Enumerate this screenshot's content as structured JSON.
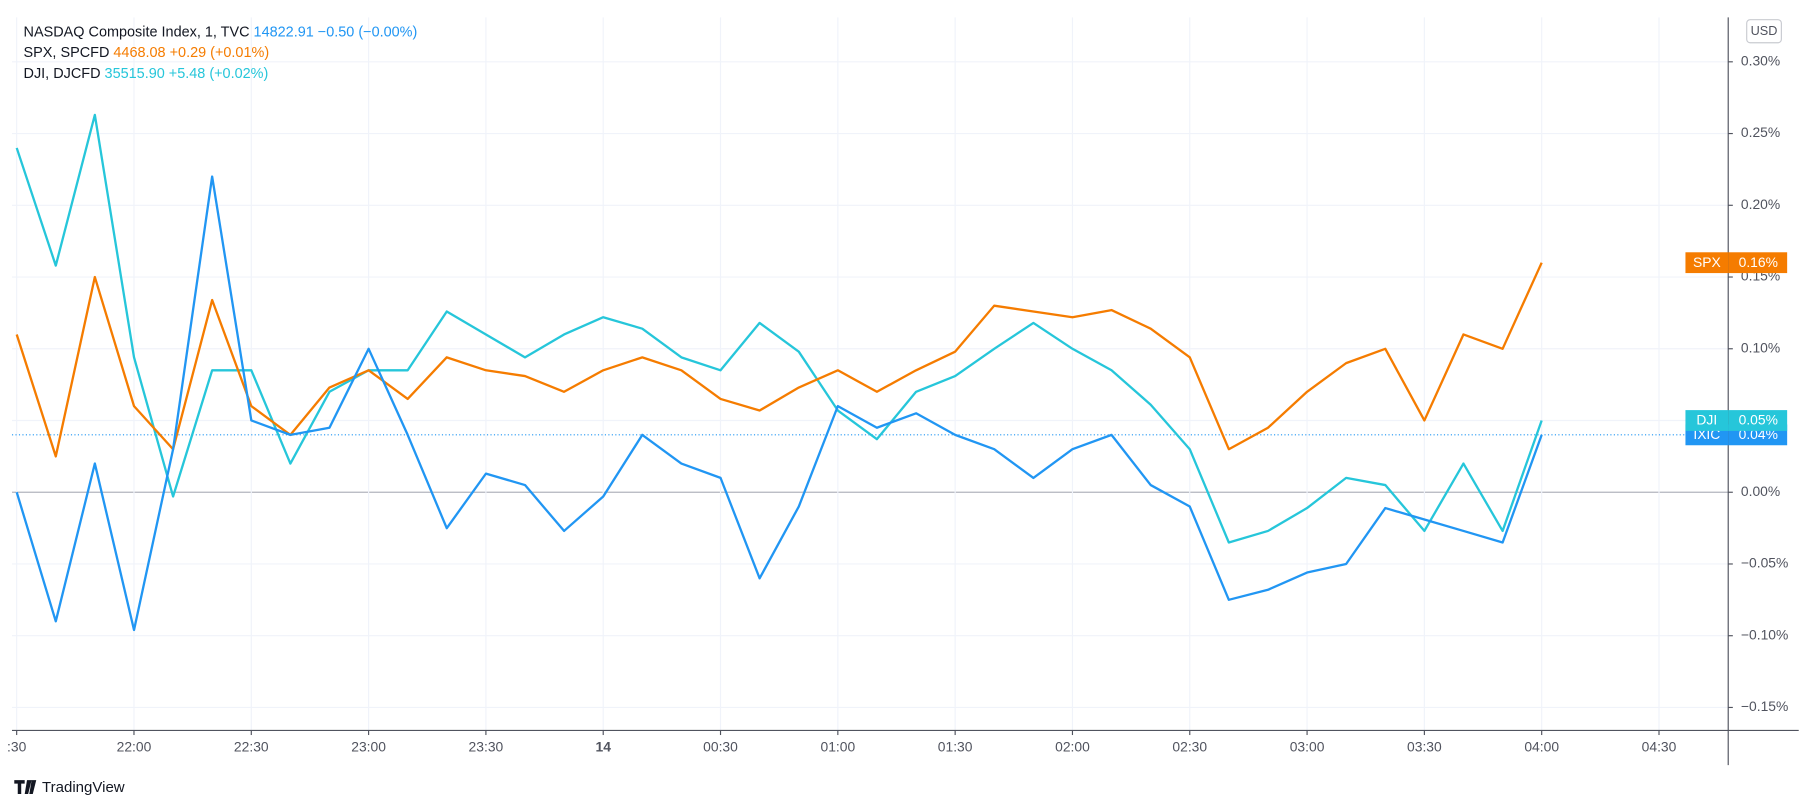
{
  "chart_data": {
    "type": "line",
    "currency": "USD",
    "brand": "TradingView",
    "x": [
      0,
      10,
      20,
      30,
      40,
      50,
      60,
      70,
      80,
      90,
      100,
      110,
      120,
      130,
      140,
      150,
      160,
      170,
      180,
      190,
      200,
      210,
      220,
      230,
      240,
      250,
      260,
      270,
      280,
      290,
      300,
      310,
      320,
      330,
      340,
      350,
      360,
      370,
      380,
      390
    ],
    "xlim": [
      -1.2,
      437.7
    ],
    "xticks": [
      {
        "value": 0,
        "label": ":30"
      },
      {
        "value": 30,
        "label": "22:00"
      },
      {
        "value": 60,
        "label": "22:30"
      },
      {
        "value": 90,
        "label": "23:00"
      },
      {
        "value": 120,
        "label": "23:30"
      },
      {
        "value": 150,
        "label": "14"
      },
      {
        "value": 180,
        "label": "00:30"
      },
      {
        "value": 210,
        "label": "01:00"
      },
      {
        "value": 240,
        "label": "01:30"
      },
      {
        "value": 270,
        "label": "02:00"
      },
      {
        "value": 300,
        "label": "02:30"
      },
      {
        "value": 330,
        "label": "03:00"
      },
      {
        "value": 360,
        "label": "03:30"
      },
      {
        "value": 390,
        "label": "04:00"
      },
      {
        "value": 420,
        "label": "04:30"
      }
    ],
    "ylim": [
      -0.166,
      0.331
    ],
    "yticks": [
      {
        "value": -0.15,
        "label": "−0.15%"
      },
      {
        "value": -0.1,
        "label": "−0.10%"
      },
      {
        "value": -0.05,
        "label": "−0.05%"
      },
      {
        "value": 0,
        "label": "0.00%"
      },
      {
        "value": 0.05,
        "label": "0.05%"
      },
      {
        "value": 0.1,
        "label": "0.10%"
      },
      {
        "value": 0.15,
        "label": "0.15%"
      },
      {
        "value": 0.2,
        "label": "0.20%"
      },
      {
        "value": 0.25,
        "label": "0.25%"
      },
      {
        "value": 0.3,
        "label": "0.30%"
      }
    ],
    "grid": true,
    "series": [
      {
        "name": "NASDAQ Composite Index, 1, TVC",
        "symbol": "IXIC",
        "price": "14822.91",
        "change": "−0.50 (−0.00%)",
        "last_label": "0.04%",
        "color": "#2196f3",
        "values": [
          0.0,
          -0.09,
          0.02,
          -0.096,
          0.03,
          0.22,
          0.05,
          0.04,
          0.045,
          0.1,
          0.04,
          -0.025,
          0.013,
          0.005,
          -0.027,
          -0.003,
          0.04,
          0.02,
          0.01,
          -0.06,
          -0.01,
          0.06,
          0.045,
          0.055,
          0.04,
          0.03,
          0.01,
          0.03,
          0.04,
          0.005,
          -0.01,
          -0.075,
          -0.068,
          -0.056,
          -0.05,
          -0.011,
          -0.019,
          -0.027,
          -0.035,
          0.04
        ]
      },
      {
        "name": "SPX, SPCFD",
        "symbol": "SPX",
        "price": "4468.08",
        "change": "+0.29 (+0.01%)",
        "last_label": "0.16%",
        "color": "#f57c00",
        "values": [
          0.11,
          0.025,
          0.15,
          0.06,
          0.03,
          0.134,
          0.06,
          0.04,
          0.073,
          0.085,
          0.065,
          0.094,
          0.085,
          0.081,
          0.07,
          0.085,
          0.094,
          0.085,
          0.065,
          0.057,
          0.073,
          0.085,
          0.07,
          0.085,
          0.098,
          0.13,
          0.126,
          0.122,
          0.127,
          0.114,
          0.094,
          0.03,
          0.045,
          0.07,
          0.09,
          0.1,
          0.05,
          0.11,
          0.1,
          0.16
        ]
      },
      {
        "name": "DJI, DJCFD",
        "symbol": "DJI",
        "price": "35515.90",
        "change": "+5.48 (+0.02%)",
        "last_label": "0.05%",
        "color": "#26c6da",
        "values": [
          0.24,
          0.158,
          0.263,
          0.094,
          -0.003,
          0.085,
          0.085,
          0.02,
          0.07,
          0.085,
          0.085,
          0.126,
          0.11,
          0.094,
          0.11,
          0.122,
          0.114,
          0.094,
          0.085,
          0.118,
          0.098,
          0.057,
          0.037,
          0.07,
          0.081,
          0.1,
          0.118,
          0.1,
          0.085,
          0.061,
          0.03,
          -0.035,
          -0.027,
          -0.011,
          0.01,
          0.005,
          -0.027,
          0.02,
          -0.027,
          0.05
        ]
      }
    ]
  }
}
